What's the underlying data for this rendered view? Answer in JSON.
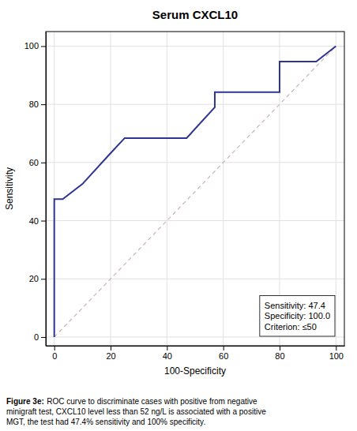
{
  "chart_data": {
    "type": "line",
    "title": "Serum CXCL10",
    "x_label": "100-Specificity",
    "y_label": "Sensitivity",
    "series": [
      {
        "x": [
          0,
          0,
          3,
          10,
          10,
          20,
          25,
          47,
          57,
          57,
          80,
          80,
          93,
          100
        ],
        "values": [
          0,
          47.4,
          47.4,
          52.6,
          52.6,
          63.2,
          68.4,
          68.4,
          79.0,
          84.2,
          84.2,
          94.7,
          94.7,
          100
        ],
        "color": "#2e3591",
        "line_style": "solid"
      },
      {
        "x": [
          0,
          100
        ],
        "values": [
          0,
          100
        ],
        "color": "#c8b4b4",
        "line_style": "dashed"
      }
    ],
    "xlim": [
      -3,
      103
    ],
    "ylim": [
      -3,
      105
    ],
    "xticks": [
      0,
      20,
      40,
      60,
      80,
      100
    ],
    "yticks": [
      0,
      20,
      40,
      60,
      80,
      100
    ],
    "grid": true,
    "annotation": [
      "Sensitivity: 47.4",
      "Specificity: 100.0",
      "Criterion: ≤50"
    ],
    "caption_bold": "Figure 3e:",
    "caption": [
      "ROC curve to discriminate cases with positive from negative",
      "minigraft test, CXCL10 level less than 52 ng/L is associated with a positive",
      "MGT, the test had 47.4% sensitivity and 100% specificity."
    ]
  }
}
